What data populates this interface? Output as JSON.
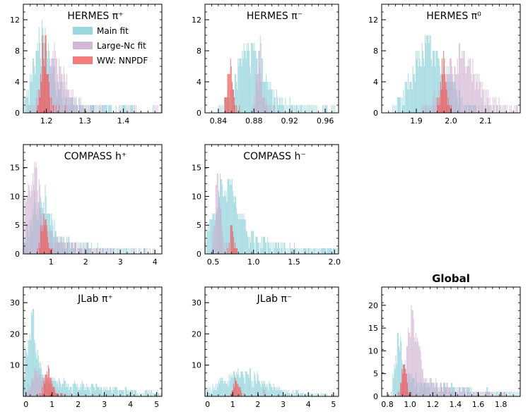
{
  "colors": {
    "main": "#7fcdd6",
    "large_nc": "#c9a7cc",
    "ww": "#f05a5a",
    "overlap": "#2b2b3a"
  },
  "legend": {
    "placement": "inside-first-panel-top-right",
    "entries": [
      {
        "label": "Main fit",
        "color": "#7fcdd6"
      },
      {
        "label": "Large-Nc fit",
        "color": "#c9a7cc"
      },
      {
        "label": "WW: NNPDF",
        "color": "#f05a5a"
      }
    ]
  },
  "chart_data": [
    {
      "type": "histogram",
      "title": "HERMES π⁺",
      "xlim": [
        1.14,
        1.5
      ],
      "ylim": [
        0,
        14
      ],
      "xticks": [
        "1.2",
        "1.3",
        "1.4"
      ],
      "xtick_values": [
        1.2,
        1.3,
        1.4
      ],
      "yticks": [
        "0",
        "4",
        "8",
        "12"
      ],
      "ytick_values": [
        0,
        4,
        8,
        12
      ],
      "series": [
        {
          "name": "Main fit",
          "center": 1.19,
          "spread": 0.025,
          "tail": 0.14,
          "peak": 12
        },
        {
          "name": "Large-Nc fit",
          "center": 1.22,
          "spread": 0.03,
          "tail": 0.1,
          "peak": 9
        },
        {
          "name": "WW: NNPDF",
          "center": 1.195,
          "spread": 0.008,
          "tail": 0.02,
          "peak": 12
        }
      ]
    },
    {
      "type": "histogram",
      "title": "HERMES π⁻",
      "xlim": [
        0.825,
        0.975
      ],
      "ylim": [
        0,
        14
      ],
      "xticks": [
        "0.84",
        "0.88",
        "0.92",
        "0.96"
      ],
      "xtick_values": [
        0.84,
        0.88,
        0.92,
        0.96
      ],
      "yticks": [
        "0",
        "4",
        "8",
        "12"
      ],
      "ytick_values": [
        0,
        4,
        8,
        12
      ],
      "series": [
        {
          "name": "Main fit",
          "center": 0.875,
          "spread": 0.015,
          "tail": 0.06,
          "peak": 11
        },
        {
          "name": "Large-Nc fit",
          "center": 0.886,
          "spread": 0.003,
          "tail": 0.01,
          "peak": 11
        },
        {
          "name": "WW: NNPDF",
          "center": 0.853,
          "spread": 0.003,
          "tail": 0.005,
          "peak": 9
        }
      ]
    },
    {
      "type": "histogram",
      "title": "HERMES π⁰",
      "xlim": [
        1.8,
        2.2
      ],
      "ylim": [
        0,
        14
      ],
      "xticks": [
        "1.9",
        "2.0",
        "2.1"
      ],
      "xtick_values": [
        1.9,
        2.0,
        2.1
      ],
      "yticks": [
        "0",
        "4",
        "8",
        "12"
      ],
      "ytick_values": [
        0,
        4,
        8,
        12
      ],
      "series": [
        {
          "name": "Main fit",
          "center": 1.94,
          "spread": 0.05,
          "tail": 0.08,
          "peak": 11
        },
        {
          "name": "Large-Nc fit",
          "center": 2.03,
          "spread": 0.05,
          "tail": 0.12,
          "peak": 9
        },
        {
          "name": "WW: NNPDF",
          "center": 1.98,
          "spread": 0.01,
          "tail": 0.01,
          "peak": 8
        }
      ]
    },
    {
      "type": "histogram",
      "title": "COMPASS h⁺",
      "xlim": [
        0.2,
        4.2
      ],
      "ylim": [
        0,
        19
      ],
      "xticks": [
        "1",
        "2",
        "3",
        "4"
      ],
      "xtick_values": [
        1,
        2,
        3,
        4
      ],
      "yticks": [
        "0",
        "5",
        "10",
        "15"
      ],
      "ytick_values": [
        0,
        5,
        10,
        15
      ],
      "series": [
        {
          "name": "Main fit",
          "center": 0.7,
          "spread": 0.3,
          "tail": 2.0,
          "peak": 13
        },
        {
          "name": "Large-Nc fit",
          "center": 0.5,
          "spread": 0.2,
          "tail": 1.2,
          "peak": 19
        },
        {
          "name": "WW: NNPDF",
          "center": 0.8,
          "spread": 0.1,
          "tail": 0.1,
          "peak": 8
        }
      ]
    },
    {
      "type": "histogram",
      "title": "COMPASS h⁻",
      "xlim": [
        0.4,
        2.05
      ],
      "ylim": [
        0,
        19
      ],
      "xticks": [
        "0.5",
        "1.0",
        "1.5",
        "2.0"
      ],
      "xtick_values": [
        0.5,
        1.0,
        1.5,
        2.0
      ],
      "yticks": [
        "0",
        "5",
        "10",
        "15"
      ],
      "ytick_values": [
        0,
        5,
        10,
        15
      ],
      "series": [
        {
          "name": "Main fit",
          "center": 0.65,
          "spread": 0.15,
          "tail": 0.9,
          "peak": 16
        },
        {
          "name": "Large-Nc fit",
          "center": 0.56,
          "spread": 0.04,
          "tail": 0.1,
          "peak": 15
        },
        {
          "name": "WW: NNPDF",
          "center": 0.74,
          "spread": 0.03,
          "tail": 0.03,
          "peak": 7
        }
      ]
    },
    {
      "type": "histogram",
      "title": "JLab π⁺",
      "xlim": [
        -0.1,
        5.2
      ],
      "ylim": [
        0,
        35
      ],
      "xticks": [
        "0",
        "1",
        "2",
        "3",
        "4",
        "5"
      ],
      "xtick_values": [
        0,
        1,
        2,
        3,
        4,
        5
      ],
      "yticks": [
        "10",
        "20",
        "30"
      ],
      "ytick_values": [
        10,
        20,
        30
      ],
      "series": [
        {
          "name": "Main fit",
          "center": 0.2,
          "spread": 0.2,
          "tail": 2.8,
          "peak": 32
        },
        {
          "name": "Large-Nc fit",
          "center": 0.5,
          "spread": 0.3,
          "tail": 1.0,
          "peak": 10
        },
        {
          "name": "WW: NNPDF",
          "center": 0.85,
          "spread": 0.15,
          "tail": 0.2,
          "peak": 11
        }
      ]
    },
    {
      "type": "histogram",
      "title": "JLab π⁻",
      "xlim": [
        -0.1,
        5.2
      ],
      "ylim": [
        0,
        35
      ],
      "xticks": [
        "0",
        "1",
        "2",
        "3",
        "4",
        "5"
      ],
      "xtick_values": [
        0,
        1,
        2,
        3,
        4,
        5
      ],
      "yticks": [
        "10",
        "20",
        "30"
      ],
      "ytick_values": [
        10,
        20,
        30
      ],
      "series": [
        {
          "name": "Main fit",
          "center": 1.4,
          "spread": 0.9,
          "tail": 2.5,
          "peak": 10
        },
        {
          "name": "Large-Nc fit",
          "center": 2.25,
          "spread": 0.03,
          "tail": 0.05,
          "peak": 6
        },
        {
          "name": "WW: NNPDF",
          "center": 1.15,
          "spread": 0.12,
          "tail": 0.12,
          "peak": 7
        }
      ]
    },
    {
      "type": "histogram",
      "title": "Global",
      "xlim": [
        0.75,
        1.97
      ],
      "ylim": [
        0,
        24
      ],
      "xticks": [
        "0.8",
        "1.0",
        "1.2",
        "1.4",
        "1.6",
        "1.8"
      ],
      "xtick_values": [
        0.8,
        1.0,
        1.2,
        1.4,
        1.6,
        1.8
      ],
      "yticks": [
        "0",
        "5",
        "10",
        "15",
        "20"
      ],
      "ytick_values": [
        0,
        5,
        10,
        15,
        20
      ],
      "series": [
        {
          "name": "Main fit",
          "center": 0.9,
          "spread": 0.03,
          "tail": 0.6,
          "peak": 20
        },
        {
          "name": "Large-Nc fit",
          "center": 1.02,
          "spread": 0.05,
          "tail": 0.35,
          "peak": 23
        },
        {
          "name": "WW: NNPDF",
          "center": 0.95,
          "spread": 0.02,
          "tail": 0.03,
          "peak": 11
        }
      ]
    }
  ]
}
